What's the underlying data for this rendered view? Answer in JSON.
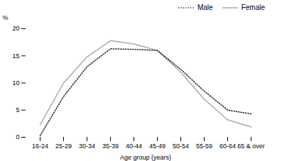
{
  "chart_data": {
    "type": "line",
    "categories": [
      "16-24",
      "25-29",
      "30-34",
      "35-39",
      "40-44",
      "45-49",
      "50-54",
      "55-59",
      "60-64",
      "65 & over"
    ],
    "series": [
      {
        "name": "Male",
        "color": "#1a1a1a",
        "line_style": "dotted",
        "values": [
          0.3,
          7.5,
          13.0,
          16.3,
          16.2,
          16.0,
          12.5,
          8.5,
          5.0,
          4.3
        ]
      },
      {
        "name": "Female",
        "color": "#aaaaaa",
        "line_style": "solid",
        "values": [
          2.3,
          10.0,
          14.8,
          17.8,
          17.2,
          16.0,
          12.0,
          7.0,
          3.2,
          1.9
        ]
      }
    ],
    "xlabel": "Age group (years)",
    "ylabel": "%",
    "ylim": [
      0,
      20
    ],
    "yticks": [
      0,
      5,
      10,
      15,
      20
    ],
    "legend": "upper right",
    "grid": false
  }
}
